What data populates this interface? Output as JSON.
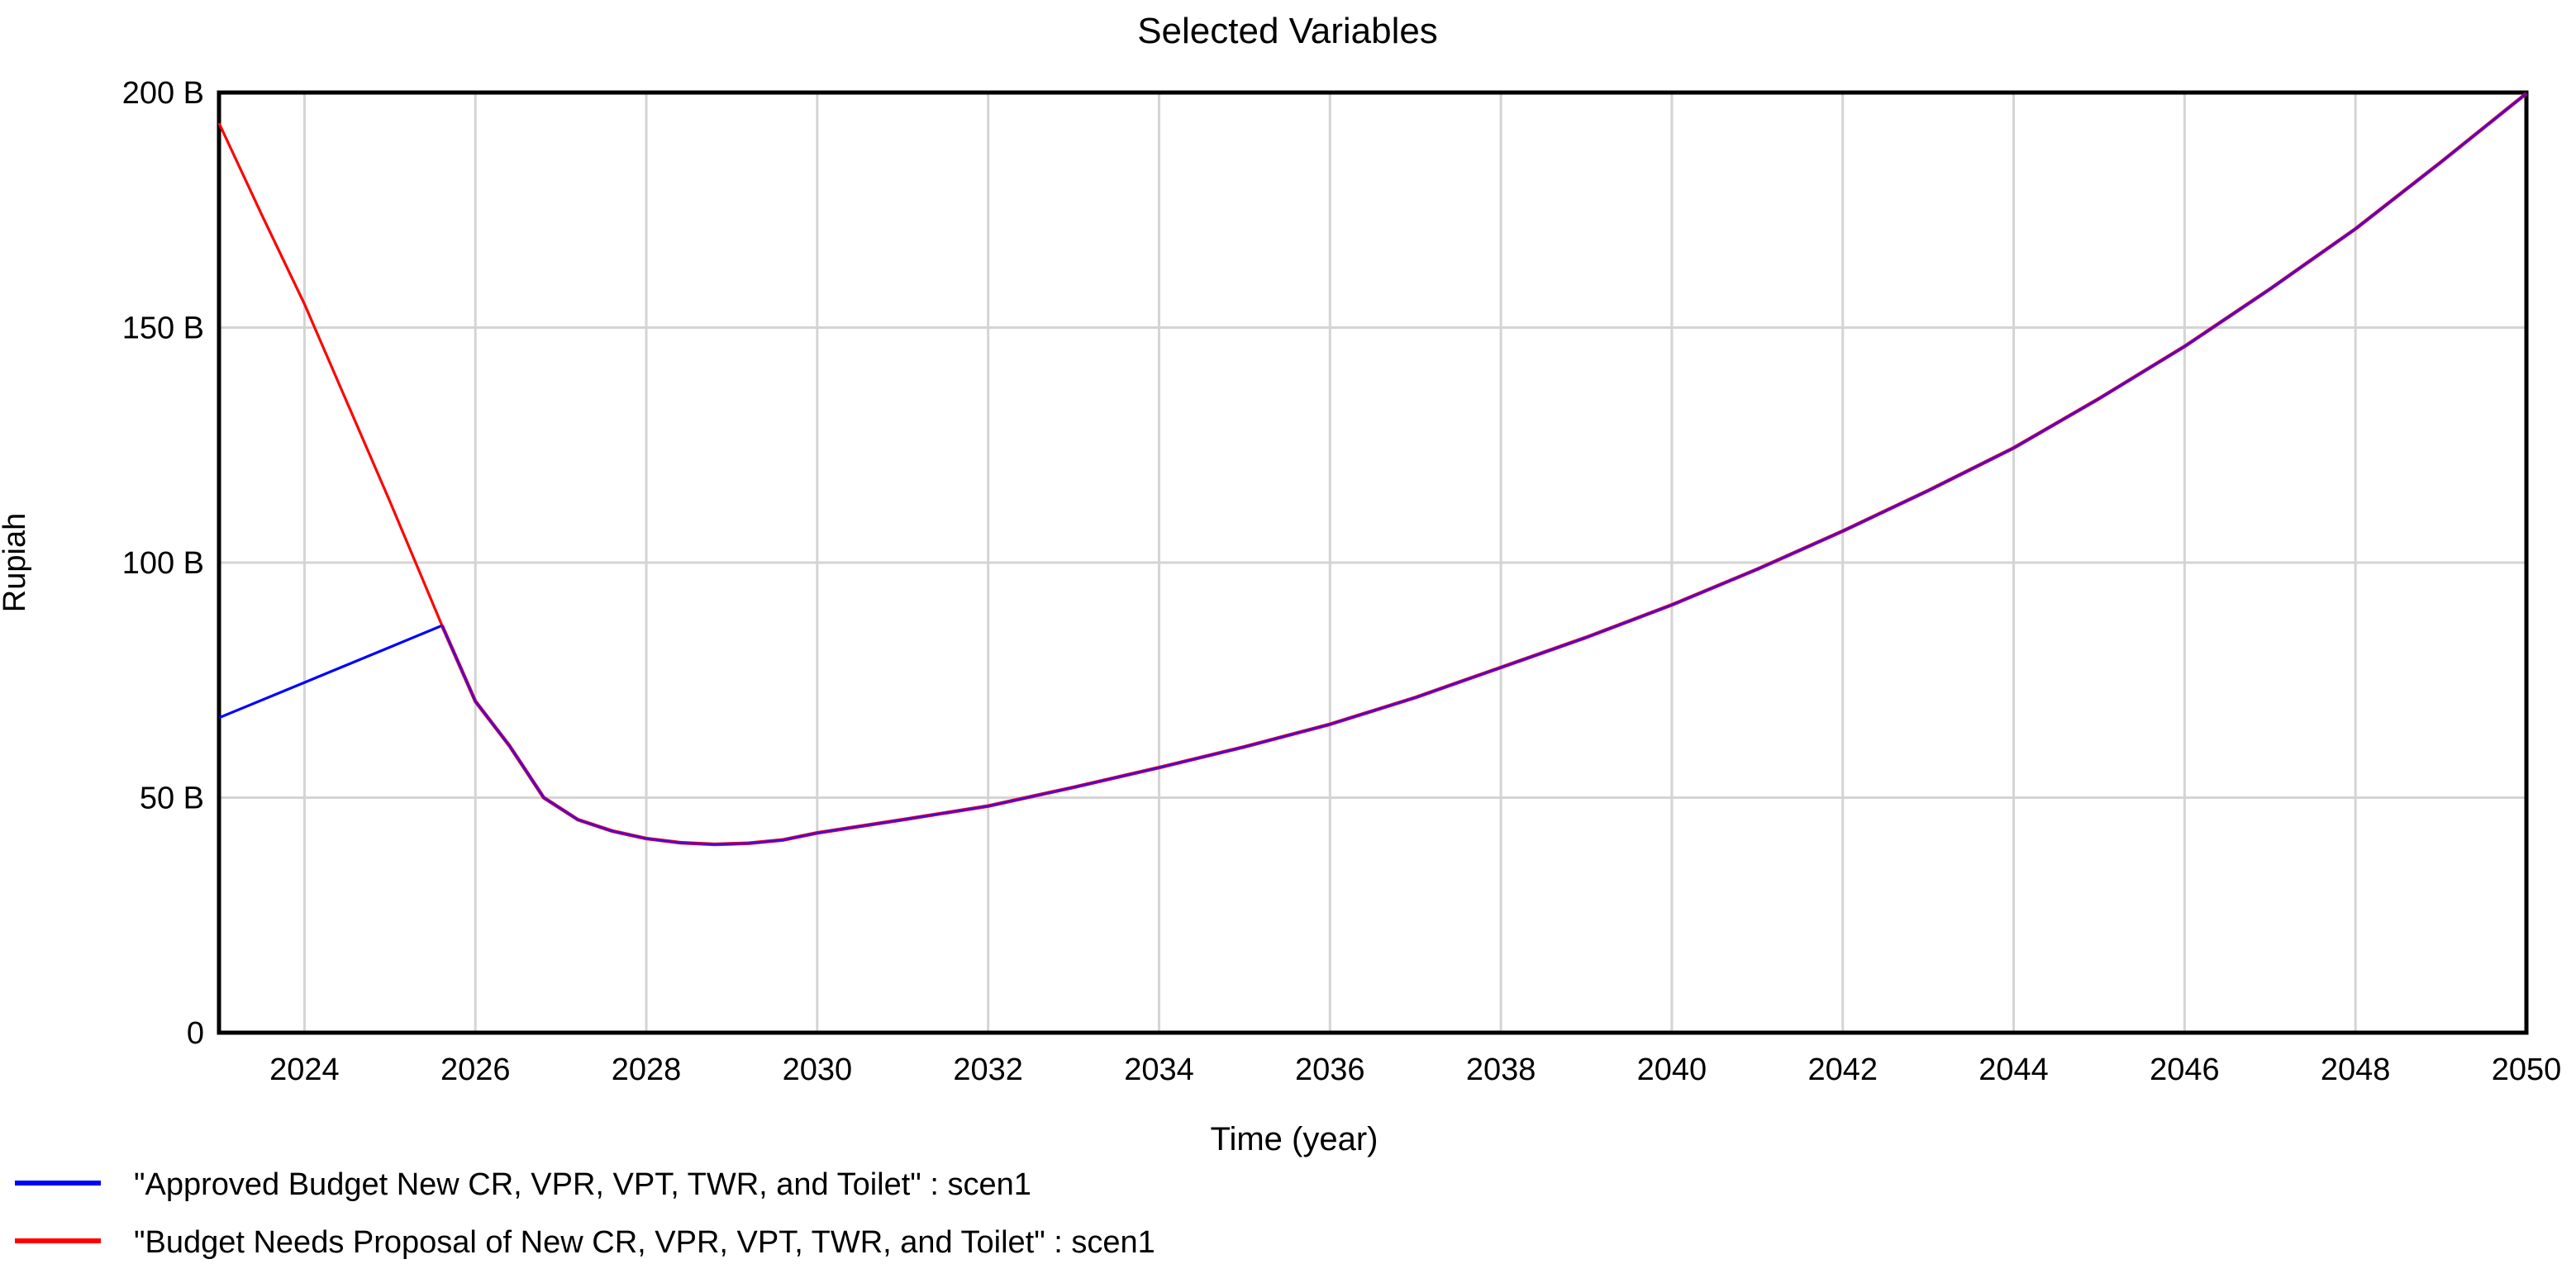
{
  "title": "Selected Variables",
  "colors": {
    "approved_line": "#0000ff",
    "needs_line": "#ff0000",
    "overlap_line": "#4c09d6",
    "gridline": "#d4d4d4",
    "axis": "#000000",
    "background": "#ffffff",
    "text": "#000000"
  },
  "legend": {
    "position": "bottom-left",
    "entries": [
      {
        "swatch": "line",
        "color": "#0000ff",
        "label": "\"Approved Budget New CR, VPR, VPT, TWR, and Toilet\" : scen1"
      },
      {
        "swatch": "line",
        "color": "#ff0000",
        "label": "\"Budget Needs Proposal of New CR, VPR, VPT, TWR, and Toilet\" : scen1"
      }
    ]
  },
  "chart_data": {
    "type": "line",
    "title": "Selected Variables",
    "xlabel": "Time (year)",
    "ylabel": "Rupiah",
    "xlim": [
      2023,
      2050
    ],
    "ylim": [
      0,
      200
    ],
    "y_unit": "B",
    "grid": true,
    "x_gridline_years": [
      2024,
      2026,
      2028,
      2030,
      2032,
      2034,
      2036,
      2038,
      2040,
      2042,
      2044,
      2046,
      2048
    ],
    "x_ticks": [
      2024,
      2026,
      2028,
      2030,
      2032,
      2034,
      2036,
      2038,
      2040,
      2042,
      2044,
      2046,
      2048,
      2050
    ],
    "y_ticks": [
      {
        "value": 0,
        "label": "0"
      },
      {
        "value": 50,
        "label": "50 B"
      },
      {
        "value": 100,
        "label": "100 B"
      },
      {
        "value": 150,
        "label": "150 B"
      },
      {
        "value": 200,
        "label": "200 B"
      }
    ],
    "overlap_start_year": 2025.61,
    "series": [
      {
        "name": "\"Approved Budget New CR, VPR, VPT, TWR, and Toilet\" : scen1",
        "scenario": "scen1",
        "color": "#0000ff",
        "points": [
          [
            2023,
            67
          ],
          [
            2024,
            74.5
          ],
          [
            2025,
            82
          ],
          [
            2025.61,
            86.6
          ],
          [
            2026,
            70.5
          ],
          [
            2026.4,
            61
          ],
          [
            2026.8,
            50
          ],
          [
            2027.2,
            45.3
          ],
          [
            2027.6,
            42.9
          ],
          [
            2028,
            41.3
          ],
          [
            2028.4,
            40.4
          ],
          [
            2028.8,
            40.05
          ],
          [
            2029.2,
            40.3
          ],
          [
            2029.6,
            41.0
          ],
          [
            2030,
            42.5
          ],
          [
            2031,
            45.3
          ],
          [
            2032,
            48.2
          ],
          [
            2033,
            52.2
          ],
          [
            2034,
            56.4
          ],
          [
            2035,
            60.8
          ],
          [
            2036,
            65.6
          ],
          [
            2037,
            71.3
          ],
          [
            2038,
            77.7
          ],
          [
            2039,
            84.1
          ],
          [
            2040,
            91
          ],
          [
            2041,
            98.6
          ],
          [
            2042,
            106.7
          ],
          [
            2043,
            115.3
          ],
          [
            2044,
            124.4
          ],
          [
            2045,
            134.9
          ],
          [
            2046,
            146
          ],
          [
            2047,
            158.2
          ],
          [
            2048,
            171
          ],
          [
            2049,
            185.2
          ],
          [
            2050,
            199.8
          ]
        ]
      },
      {
        "name": "\"Budget Needs Proposal of New CR, VPR, VPT, TWR, and Toilet\" : scen1",
        "scenario": "scen1",
        "color": "#ff0000",
        "points": [
          [
            2023,
            193.5
          ],
          [
            2023.5,
            174
          ],
          [
            2024,
            155
          ],
          [
            2024.5,
            134
          ],
          [
            2025,
            113
          ],
          [
            2025.61,
            86.6
          ],
          [
            2026,
            70.5
          ],
          [
            2026.4,
            61
          ],
          [
            2026.8,
            50
          ],
          [
            2027.2,
            45.3
          ],
          [
            2027.6,
            42.9
          ],
          [
            2028,
            41.3
          ],
          [
            2028.4,
            40.4
          ],
          [
            2028.8,
            40.05
          ],
          [
            2029.2,
            40.3
          ],
          [
            2029.6,
            41.0
          ],
          [
            2030,
            42.5
          ],
          [
            2031,
            45.3
          ],
          [
            2032,
            48.2
          ],
          [
            2033,
            52.2
          ],
          [
            2034,
            56.4
          ],
          [
            2035,
            60.8
          ],
          [
            2036,
            65.6
          ],
          [
            2037,
            71.3
          ],
          [
            2038,
            77.7
          ],
          [
            2039,
            84.1
          ],
          [
            2040,
            91
          ],
          [
            2041,
            98.6
          ],
          [
            2042,
            106.7
          ],
          [
            2043,
            115.3
          ],
          [
            2044,
            124.4
          ],
          [
            2045,
            134.9
          ],
          [
            2046,
            146
          ],
          [
            2047,
            158.2
          ],
          [
            2048,
            171
          ],
          [
            2049,
            185.2
          ],
          [
            2050,
            199.8
          ]
        ]
      }
    ]
  }
}
